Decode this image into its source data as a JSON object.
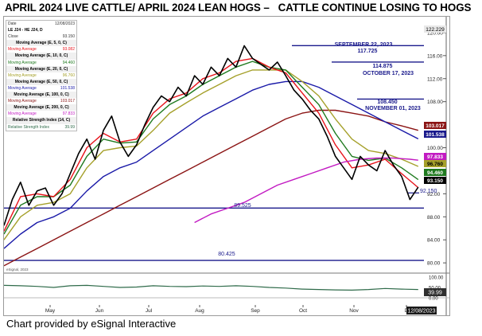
{
  "title": "APRIL 2024 LIVE CATTLE/ APRIL 2024 LEAN HOGS –   CATTLE CONTINUE LOSING TO HOGS",
  "caption": "Chart provided by eSignal Interactive",
  "legend": {
    "symbol": "LE J24 - HE J24, D",
    "date_label": "Date",
    "date_value": "12/08/2023",
    "close_label": "Close",
    "close_value": "93.150",
    "rows": [
      {
        "header": "Moving Average (E, 5, 0, C)",
        "label": "Moving Average",
        "value": "93.082",
        "color": "#e8131b"
      },
      {
        "header": "Moving Average (E, 10, 0, C)",
        "label": "Moving Average",
        "value": "94.460",
        "color": "#1f7a1f"
      },
      {
        "header": "Moving Average (E, 20, 0, C)",
        "label": "Moving Average",
        "value": "96.760",
        "color": "#a5a02a"
      },
      {
        "header": "Moving Average (E, 50, 0, C)",
        "label": "Moving Average",
        "value": "101.538",
        "color": "#1a1aa8"
      },
      {
        "header": "Moving Average (E, 100, 0, C)",
        "label": "Moving Average",
        "value": "103.017",
        "color": "#8b1414"
      },
      {
        "header": "Moving Average (E, 200, 0, C)",
        "label": "Moving Average",
        "value": "97.833",
        "color": "#c21ac2"
      },
      {
        "header": "Relative Strength Index (14, C)",
        "label": "Relative Strength Index",
        "value": "39.99",
        "color": "#2f6b4a"
      }
    ]
  },
  "annotations": {
    "a1_date": "SEPTEMBER 22, 2023",
    "a1_value": "117.725",
    "a2_value": "114.875",
    "a2_date": "OCTOBER 17, 2023",
    "a3_value": "108.450",
    "a3_date": "NOVEMBER 01, 2023",
    "a4_value": "92.150",
    "a5_value": "89.525",
    "a6_value": "80.425",
    "top_price": "122.229",
    "price_tags": [
      "103.017",
      "101.538",
      "97.833",
      "96.760",
      "94.460",
      "93.150"
    ],
    "date_tag": "12/08/2023",
    "rsi_tag": "39.99",
    "rsi_label": "eSignal, 2023"
  },
  "chart_data": {
    "type": "line",
    "title": "APRIL 2024 LIVE CATTLE/ APRIL 2024 LEAN HOGS – CATTLE CONTINUE LOSING TO HOGS",
    "x_ticks": [
      "May",
      "Jun",
      "Jul",
      "Aug",
      "Sep",
      "Oct",
      "Nov",
      "D"
    ],
    "y_ticks": [
      80.0,
      84.0,
      88.0,
      92.0,
      96.0,
      100.0,
      104.0,
      108.0,
      112.0,
      116.0,
      120.0
    ],
    "ylim": [
      78.5,
      122.2
    ],
    "rsi_ticks": [
      100.0,
      50.0,
      0.0
    ],
    "horizontal_levels": [
      117.725,
      114.875,
      108.45,
      92.15,
      89.525,
      80.425
    ],
    "series": [
      {
        "name": "LE J24 - HE J24",
        "color": "#000000",
        "x": [
          0,
          5,
          10,
          15,
          20,
          25,
          30,
          35,
          40,
          45,
          50,
          55,
          60,
          65,
          70,
          75,
          80,
          85,
          90,
          95,
          100,
          105,
          110,
          115,
          120,
          125,
          130,
          135,
          140,
          145,
          150,
          155,
          160,
          165,
          170,
          175,
          180,
          185,
          190,
          195,
          200,
          205,
          210,
          215,
          220,
          225,
          230,
          235,
          240,
          245,
          250
        ],
        "y": [
          86.5,
          91.0,
          94.0,
          90.0,
          92.5,
          93.0,
          90.0,
          92.0,
          95.5,
          99.0,
          101.5,
          98.0,
          103.0,
          105.5,
          101.0,
          98.5,
          100.5,
          104.0,
          107.0,
          109.0,
          108.0,
          110.5,
          109.0,
          112.5,
          111.0,
          114.0,
          112.5,
          115.5,
          114.0,
          117.725,
          115.5,
          114.5,
          113.5,
          114.875,
          112.5,
          110.0,
          108.45,
          106.5,
          105.0,
          102.0,
          98.5,
          96.5,
          94.5,
          98.5,
          97.0,
          96.0,
          99.5,
          97.0,
          95.0,
          91.0,
          93.15
        ]
      },
      {
        "name": "Moving Average (E, 5, 0, C)",
        "color": "#e8131b",
        "x": [
          0,
          10,
          20,
          30,
          40,
          50,
          60,
          70,
          80,
          90,
          100,
          110,
          120,
          130,
          140,
          150,
          160,
          170,
          180,
          190,
          200,
          210,
          220,
          230,
          240,
          250
        ],
        "y": [
          85.5,
          91.5,
          92.0,
          91.5,
          94.5,
          100.0,
          102.5,
          101.0,
          101.5,
          106.0,
          108.5,
          109.5,
          112.0,
          113.0,
          115.0,
          115.5,
          114.0,
          113.0,
          109.5,
          106.0,
          100.5,
          96.5,
          97.0,
          98.0,
          95.5,
          93.082
        ]
      },
      {
        "name": "Moving Average (E, 10, 0, C)",
        "color": "#1f7a1f",
        "x": [
          0,
          10,
          20,
          30,
          40,
          50,
          60,
          70,
          80,
          90,
          100,
          110,
          120,
          130,
          140,
          150,
          160,
          170,
          180,
          190,
          200,
          210,
          220,
          230,
          240,
          250
        ],
        "y": [
          85.0,
          90.0,
          91.5,
          91.5,
          93.5,
          98.5,
          101.5,
          100.8,
          101.0,
          105.0,
          107.5,
          109.0,
          111.0,
          112.5,
          114.0,
          115.0,
          114.0,
          113.5,
          110.5,
          107.5,
          102.5,
          98.5,
          97.8,
          98.2,
          96.5,
          94.46
        ]
      },
      {
        "name": "Moving Average (E, 20, 0, C)",
        "color": "#a5a02a",
        "x": [
          0,
          10,
          20,
          30,
          40,
          50,
          60,
          70,
          80,
          90,
          100,
          110,
          120,
          130,
          140,
          150,
          160,
          170,
          180,
          190,
          200,
          210,
          220,
          230,
          240,
          250
        ],
        "y": [
          84.0,
          88.0,
          90.0,
          90.5,
          92.0,
          96.5,
          99.5,
          100.0,
          100.3,
          103.0,
          106.0,
          107.8,
          109.5,
          111.0,
          112.5,
          113.5,
          113.5,
          113.5,
          111.5,
          109.0,
          105.0,
          101.5,
          99.5,
          99.0,
          98.0,
          96.76
        ]
      },
      {
        "name": "Moving Average (E, 50, 0, C)",
        "color": "#1a1aa8",
        "x": [
          0,
          10,
          20,
          30,
          40,
          50,
          60,
          70,
          80,
          90,
          100,
          110,
          120,
          130,
          140,
          150,
          160,
          170,
          180,
          190,
          200,
          210,
          220,
          230,
          240,
          250
        ],
        "y": [
          82.5,
          85.0,
          87.0,
          88.0,
          89.5,
          92.5,
          95.0,
          96.5,
          97.5,
          99.5,
          101.5,
          103.5,
          105.5,
          107.0,
          108.5,
          110.0,
          111.0,
          111.5,
          111.5,
          110.5,
          109.0,
          107.5,
          106.0,
          104.5,
          103.0,
          101.538
        ]
      },
      {
        "name": "Moving Average (E, 100, 0, C)",
        "color": "#8b1414",
        "x": [
          0,
          10,
          20,
          30,
          40,
          50,
          60,
          70,
          80,
          90,
          100,
          110,
          120,
          130,
          140,
          150,
          160,
          170,
          180,
          190,
          200,
          210,
          220,
          230,
          240,
          250
        ],
        "y": [
          79.5,
          81.0,
          82.5,
          84.0,
          85.5,
          87.0,
          88.5,
          90.0,
          91.5,
          93.0,
          94.5,
          96.0,
          97.5,
          99.0,
          100.5,
          102.0,
          103.5,
          105.0,
          106.0,
          106.5,
          106.5,
          106.0,
          105.5,
          104.5,
          103.8,
          103.017
        ]
      },
      {
        "name": "Moving Average (E, 200, 0, C)",
        "color": "#c21ac2",
        "x": [
          115,
          125,
          135,
          145,
          155,
          165,
          175,
          185,
          195,
          205,
          215,
          225,
          235,
          245,
          250
        ],
        "y": [
          87.0,
          88.5,
          89.5,
          90.5,
          92.0,
          93.5,
          94.5,
          95.5,
          96.5,
          97.5,
          98.0,
          98.2,
          98.2,
          98.0,
          97.833
        ]
      }
    ],
    "rsi": {
      "name": "Relative Strength Index (14, C)",
      "color": "#2f6b4a",
      "x": [
        0,
        10,
        20,
        30,
        40,
        50,
        60,
        70,
        80,
        90,
        100,
        110,
        120,
        130,
        140,
        150,
        160,
        170,
        180,
        190,
        200,
        210,
        220,
        230,
        240,
        250
      ],
      "y": [
        60,
        58,
        55,
        50,
        58,
        60,
        55,
        50,
        52,
        58,
        55,
        54,
        57,
        55,
        58,
        55,
        50,
        47,
        42,
        40,
        38,
        37,
        40,
        45,
        42,
        39.99
      ]
    }
  }
}
